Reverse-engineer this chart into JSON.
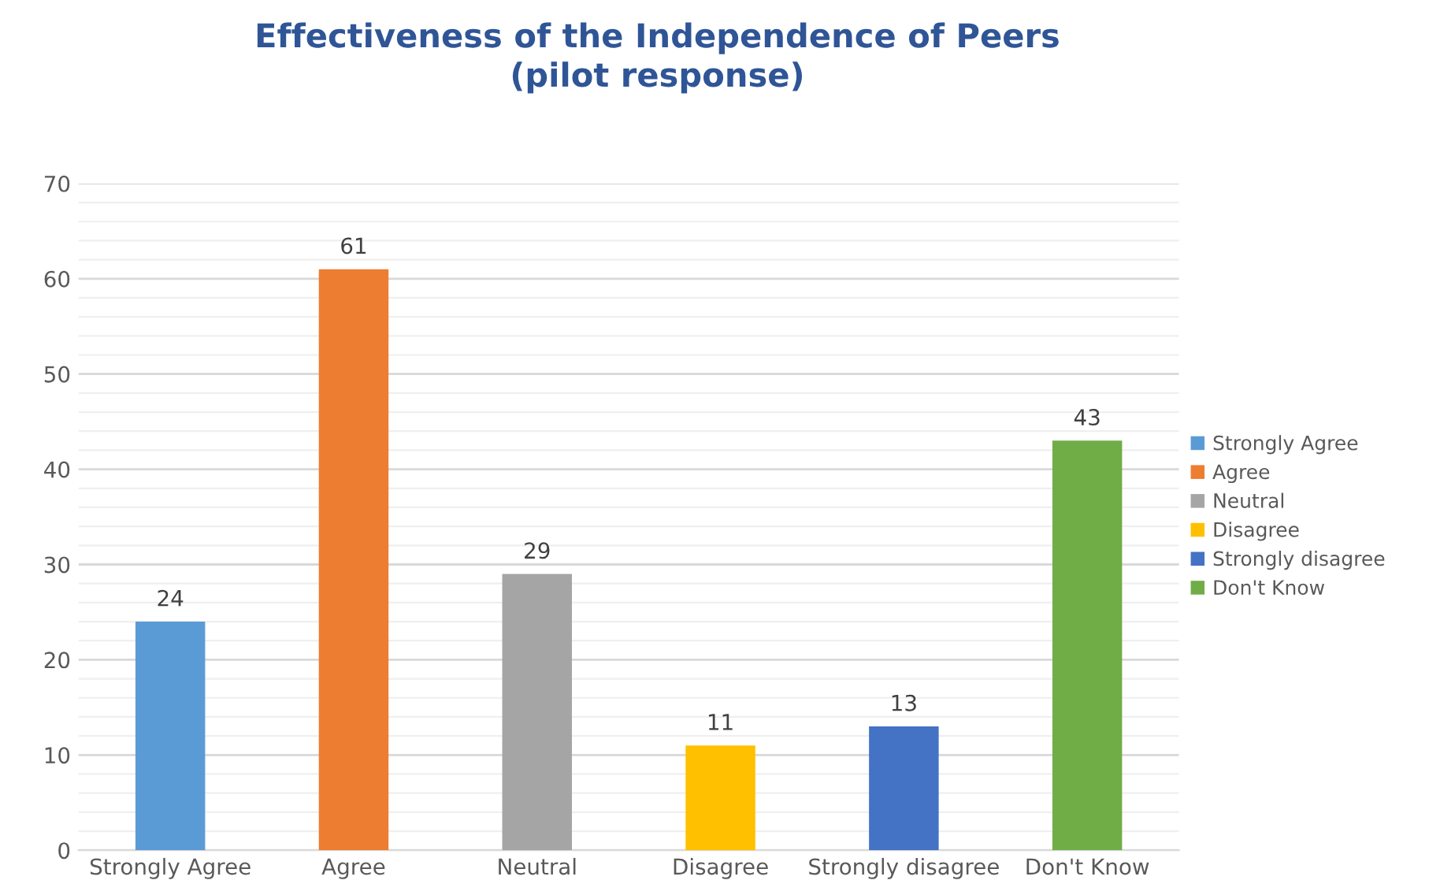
{
  "chart_data": {
    "type": "bar",
    "title": "Effectiveness of the Independence of Peers\n(pilot response)",
    "categories": [
      "Strongly Agree",
      "Agree",
      "Neutral",
      "Disagree",
      "Strongly disagree",
      "Don't Know"
    ],
    "series": [
      {
        "name": "Strongly Agree",
        "color": "#5b9bd5",
        "values": [
          24,
          null,
          null,
          null,
          null,
          null
        ]
      },
      {
        "name": "Agree",
        "color": "#ed7d31",
        "values": [
          null,
          61,
          null,
          null,
          null,
          null
        ]
      },
      {
        "name": "Neutral",
        "color": "#a5a5a5",
        "values": [
          null,
          null,
          29,
          null,
          null,
          null
        ]
      },
      {
        "name": "Disagree",
        "color": "#ffc000",
        "values": [
          null,
          null,
          null,
          11,
          null,
          null
        ]
      },
      {
        "name": "Strongly disagree",
        "color": "#4472c4",
        "values": [
          null,
          null,
          null,
          null,
          13,
          null
        ]
      },
      {
        "name": "Don't Know",
        "color": "#70ad47",
        "values": [
          null,
          null,
          null,
          null,
          null,
          43
        ]
      }
    ],
    "ylim": [
      0,
      70
    ],
    "yticks": [
      0,
      {
        "value": 2,
        "label": null
      },
      {
        "value": 4,
        "label": null
      },
      {
        "value": 6,
        "label": null
      },
      {
        "value": 8,
        "label": null
      },
      10,
      {
        "value": 12,
        "label": null
      },
      {
        "value": 14,
        "label": null
      },
      {
        "value": 16,
        "label": null
      },
      {
        "value": 18,
        "label": null
      },
      20,
      {
        "value": 22,
        "label": null
      },
      {
        "value": 24,
        "label": null
      },
      {
        "value": 26,
        "label": null
      },
      {
        "value": 28,
        "label": null
      },
      30,
      {
        "value": 32,
        "label": null
      },
      {
        "value": 34,
        "label": null
      },
      {
        "value": 36,
        "label": null
      },
      {
        "value": 38,
        "label": null
      },
      40,
      {
        "value": 42,
        "label": null
      },
      {
        "value": 44,
        "label": null
      },
      {
        "value": 46,
        "label": null
      },
      {
        "value": 48,
        "label": null
      },
      50,
      {
        "value": 52,
        "label": null
      },
      {
        "value": 54,
        "label": null
      },
      {
        "value": 56,
        "label": null
      },
      {
        "value": 58,
        "label": null
      },
      60,
      {
        "value": 62,
        "label": null
      },
      {
        "value": 64,
        "label": null
      },
      {
        "value": 66,
        "label": null
      },
      {
        "value": 68,
        "label": null
      },
      70
    ],
    "grid": "y",
    "data_labels": true,
    "legend": "right"
  }
}
